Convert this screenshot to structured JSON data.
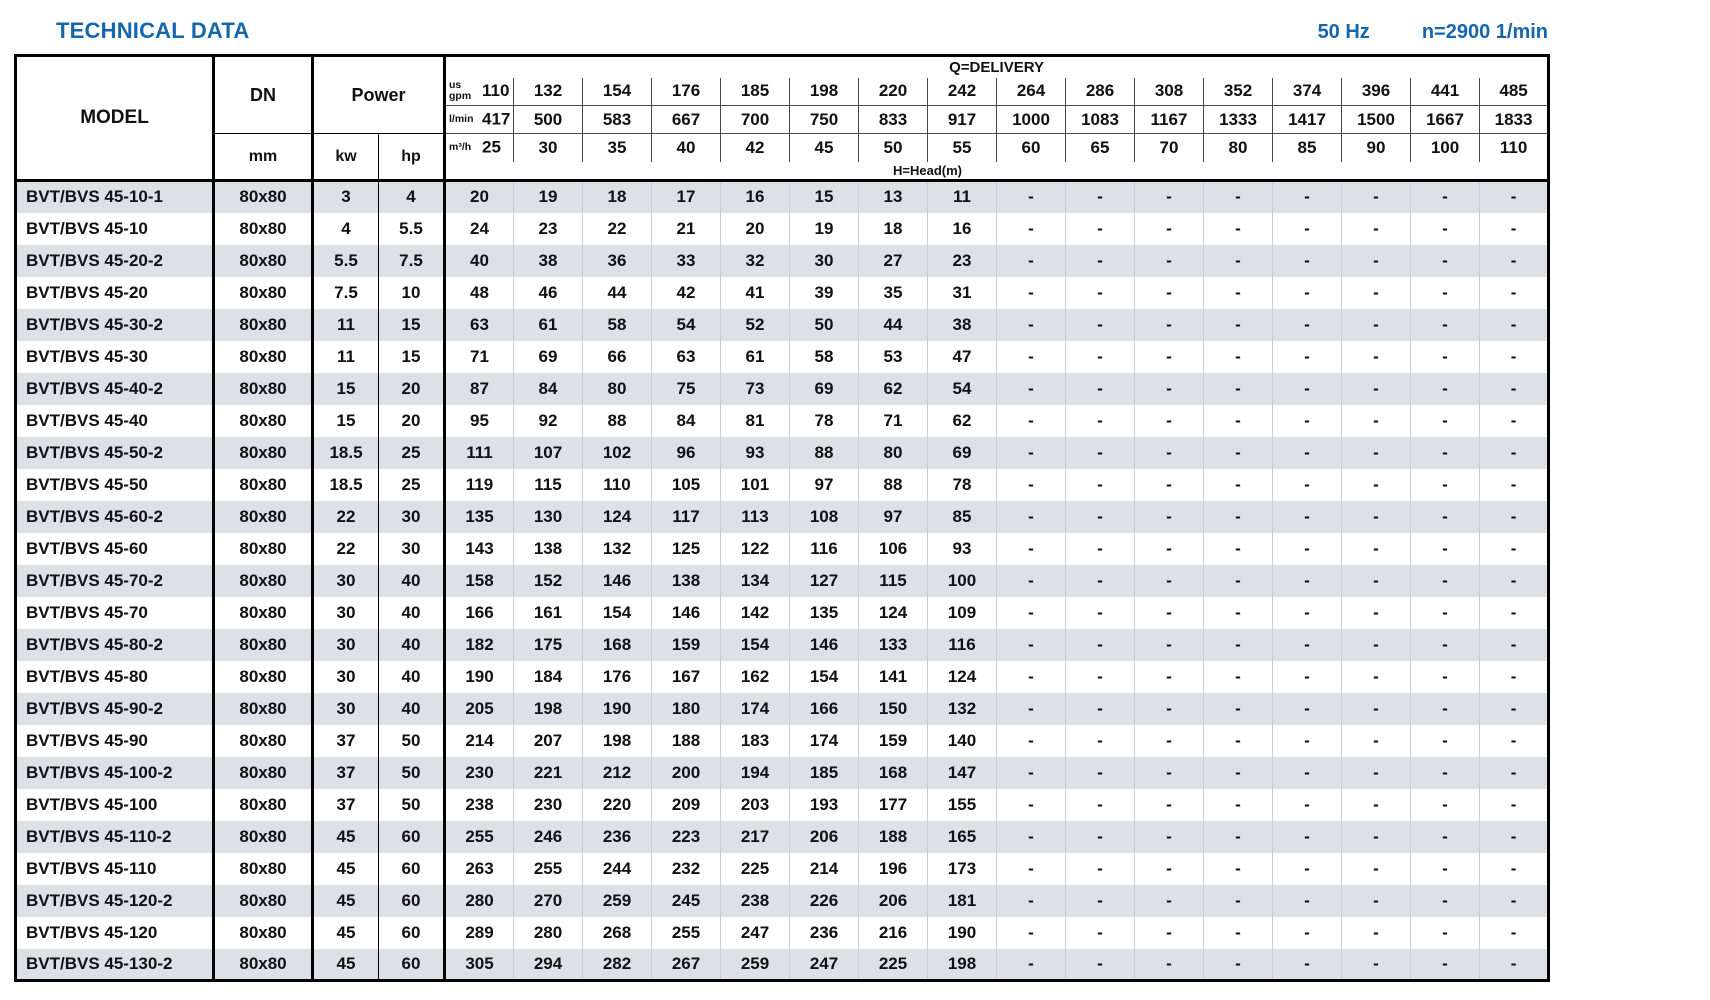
{
  "colors": {
    "accent": "#1467ad",
    "row_stripe": "#dce1e8"
  },
  "header": {
    "title": "TECHNICAL DATA",
    "frequency": "50 Hz",
    "speed": "n=2900 1/min"
  },
  "table": {
    "labels": {
      "model": "MODEL",
      "dn": "DN",
      "dn_unit": "mm",
      "power": "Power",
      "kw": "kw",
      "hp": "hp",
      "delivery": "Q=DELIVERY",
      "head": "H=Head(m)",
      "unit_us_gpm": "us gpm",
      "unit_l_min": "l/min",
      "unit_m3_h": "m³/h"
    },
    "flow": {
      "us_gpm": [
        "110",
        "132",
        "154",
        "176",
        "185",
        "198",
        "220",
        "242",
        "264",
        "286",
        "308",
        "352",
        "374",
        "396",
        "441",
        "485"
      ],
      "l_min": [
        "417",
        "500",
        "583",
        "667",
        "700",
        "750",
        "833",
        "917",
        "1000",
        "1083",
        "1167",
        "1333",
        "1417",
        "1500",
        "1667",
        "1833"
      ],
      "m3_h": [
        "25",
        "30",
        "35",
        "40",
        "42",
        "45",
        "50",
        "55",
        "60",
        "65",
        "70",
        "80",
        "85",
        "90",
        "100",
        "110"
      ]
    },
    "rows": [
      {
        "model": "BVT/BVS 45-10-1",
        "dn": "80x80",
        "kw": "3",
        "hp": "4",
        "heads": [
          "20",
          "19",
          "18",
          "17",
          "16",
          "15",
          "13",
          "11",
          "-",
          "-",
          "-",
          "-",
          "-",
          "-",
          "-",
          "-"
        ]
      },
      {
        "model": "BVT/BVS 45-10",
        "dn": "80x80",
        "kw": "4",
        "hp": "5.5",
        "heads": [
          "24",
          "23",
          "22",
          "21",
          "20",
          "19",
          "18",
          "16",
          "-",
          "-",
          "-",
          "-",
          "-",
          "-",
          "-",
          "-"
        ]
      },
      {
        "model": "BVT/BVS 45-20-2",
        "dn": "80x80",
        "kw": "5.5",
        "hp": "7.5",
        "heads": [
          "40",
          "38",
          "36",
          "33",
          "32",
          "30",
          "27",
          "23",
          "-",
          "-",
          "-",
          "-",
          "-",
          "-",
          "-",
          "-"
        ]
      },
      {
        "model": "BVT/BVS 45-20",
        "dn": "80x80",
        "kw": "7.5",
        "hp": "10",
        "heads": [
          "48",
          "46",
          "44",
          "42",
          "41",
          "39",
          "35",
          "31",
          "-",
          "-",
          "-",
          "-",
          "-",
          "-",
          "-",
          "-"
        ]
      },
      {
        "model": "BVT/BVS 45-30-2",
        "dn": "80x80",
        "kw": "11",
        "hp": "15",
        "heads": [
          "63",
          "61",
          "58",
          "54",
          "52",
          "50",
          "44",
          "38",
          "-",
          "-",
          "-",
          "-",
          "-",
          "-",
          "-",
          "-"
        ]
      },
      {
        "model": "BVT/BVS 45-30",
        "dn": "80x80",
        "kw": "11",
        "hp": "15",
        "heads": [
          "71",
          "69",
          "66",
          "63",
          "61",
          "58",
          "53",
          "47",
          "-",
          "-",
          "-",
          "-",
          "-",
          "-",
          "-",
          "-"
        ]
      },
      {
        "model": "BVT/BVS 45-40-2",
        "dn": "80x80",
        "kw": "15",
        "hp": "20",
        "heads": [
          "87",
          "84",
          "80",
          "75",
          "73",
          "69",
          "62",
          "54",
          "-",
          "-",
          "-",
          "-",
          "-",
          "-",
          "-",
          "-"
        ]
      },
      {
        "model": "BVT/BVS 45-40",
        "dn": "80x80",
        "kw": "15",
        "hp": "20",
        "heads": [
          "95",
          "92",
          "88",
          "84",
          "81",
          "78",
          "71",
          "62",
          "-",
          "-",
          "-",
          "-",
          "-",
          "-",
          "-",
          "-"
        ]
      },
      {
        "model": "BVT/BVS 45-50-2",
        "dn": "80x80",
        "kw": "18.5",
        "hp": "25",
        "heads": [
          "111",
          "107",
          "102",
          "96",
          "93",
          "88",
          "80",
          "69",
          "-",
          "-",
          "-",
          "-",
          "-",
          "-",
          "-",
          "-"
        ]
      },
      {
        "model": "BVT/BVS 45-50",
        "dn": "80x80",
        "kw": "18.5",
        "hp": "25",
        "heads": [
          "119",
          "115",
          "110",
          "105",
          "101",
          "97",
          "88",
          "78",
          "-",
          "-",
          "-",
          "-",
          "-",
          "-",
          "-",
          "-"
        ]
      },
      {
        "model": "BVT/BVS 45-60-2",
        "dn": "80x80",
        "kw": "22",
        "hp": "30",
        "heads": [
          "135",
          "130",
          "124",
          "117",
          "113",
          "108",
          "97",
          "85",
          "-",
          "-",
          "-",
          "-",
          "-",
          "-",
          "-",
          "-"
        ]
      },
      {
        "model": "BVT/BVS 45-60",
        "dn": "80x80",
        "kw": "22",
        "hp": "30",
        "heads": [
          "143",
          "138",
          "132",
          "125",
          "122",
          "116",
          "106",
          "93",
          "-",
          "-",
          "-",
          "-",
          "-",
          "-",
          "-",
          "-"
        ]
      },
      {
        "model": "BVT/BVS 45-70-2",
        "dn": "80x80",
        "kw": "30",
        "hp": "40",
        "heads": [
          "158",
          "152",
          "146",
          "138",
          "134",
          "127",
          "115",
          "100",
          "-",
          "-",
          "-",
          "-",
          "-",
          "-",
          "-",
          "-"
        ]
      },
      {
        "model": "BVT/BVS 45-70",
        "dn": "80x80",
        "kw": "30",
        "hp": "40",
        "heads": [
          "166",
          "161",
          "154",
          "146",
          "142",
          "135",
          "124",
          "109",
          "-",
          "-",
          "-",
          "-",
          "-",
          "-",
          "-",
          "-"
        ]
      },
      {
        "model": "BVT/BVS 45-80-2",
        "dn": "80x80",
        "kw": "30",
        "hp": "40",
        "heads": [
          "182",
          "175",
          "168",
          "159",
          "154",
          "146",
          "133",
          "116",
          "-",
          "-",
          "-",
          "-",
          "-",
          "-",
          "-",
          "-"
        ]
      },
      {
        "model": "BVT/BVS 45-80",
        "dn": "80x80",
        "kw": "30",
        "hp": "40",
        "heads": [
          "190",
          "184",
          "176",
          "167",
          "162",
          "154",
          "141",
          "124",
          "-",
          "-",
          "-",
          "-",
          "-",
          "-",
          "-",
          "-"
        ]
      },
      {
        "model": "BVT/BVS 45-90-2",
        "dn": "80x80",
        "kw": "30",
        "hp": "40",
        "heads": [
          "205",
          "198",
          "190",
          "180",
          "174",
          "166",
          "150",
          "132",
          "-",
          "-",
          "-",
          "-",
          "-",
          "-",
          "-",
          "-"
        ]
      },
      {
        "model": "BVT/BVS 45-90",
        "dn": "80x80",
        "kw": "37",
        "hp": "50",
        "heads": [
          "214",
          "207",
          "198",
          "188",
          "183",
          "174",
          "159",
          "140",
          "-",
          "-",
          "-",
          "-",
          "-",
          "-",
          "-",
          "-"
        ]
      },
      {
        "model": "BVT/BVS 45-100-2",
        "dn": "80x80",
        "kw": "37",
        "hp": "50",
        "heads": [
          "230",
          "221",
          "212",
          "200",
          "194",
          "185",
          "168",
          "147",
          "-",
          "-",
          "-",
          "-",
          "-",
          "-",
          "-",
          "-"
        ]
      },
      {
        "model": "BVT/BVS 45-100",
        "dn": "80x80",
        "kw": "37",
        "hp": "50",
        "heads": [
          "238",
          "230",
          "220",
          "209",
          "203",
          "193",
          "177",
          "155",
          "-",
          "-",
          "-",
          "-",
          "-",
          "-",
          "-",
          "-"
        ]
      },
      {
        "model": "BVT/BVS 45-110-2",
        "dn": "80x80",
        "kw": "45",
        "hp": "60",
        "heads": [
          "255",
          "246",
          "236",
          "223",
          "217",
          "206",
          "188",
          "165",
          "-",
          "-",
          "-",
          "-",
          "-",
          "-",
          "-",
          "-"
        ]
      },
      {
        "model": "BVT/BVS 45-110",
        "dn": "80x80",
        "kw": "45",
        "hp": "60",
        "heads": [
          "263",
          "255",
          "244",
          "232",
          "225",
          "214",
          "196",
          "173",
          "-",
          "-",
          "-",
          "-",
          "-",
          "-",
          "-",
          "-"
        ]
      },
      {
        "model": "BVT/BVS 45-120-2",
        "dn": "80x80",
        "kw": "45",
        "hp": "60",
        "heads": [
          "280",
          "270",
          "259",
          "245",
          "238",
          "226",
          "206",
          "181",
          "-",
          "-",
          "-",
          "-",
          "-",
          "-",
          "-",
          "-"
        ]
      },
      {
        "model": "BVT/BVS 45-120",
        "dn": "80x80",
        "kw": "45",
        "hp": "60",
        "heads": [
          "289",
          "280",
          "268",
          "255",
          "247",
          "236",
          "216",
          "190",
          "-",
          "-",
          "-",
          "-",
          "-",
          "-",
          "-",
          "-"
        ]
      },
      {
        "model": "BVT/BVS 45-130-2",
        "dn": "80x80",
        "kw": "45",
        "hp": "60",
        "heads": [
          "305",
          "294",
          "282",
          "267",
          "259",
          "247",
          "225",
          "198",
          "-",
          "-",
          "-",
          "-",
          "-",
          "-",
          "-",
          "-"
        ]
      }
    ]
  }
}
